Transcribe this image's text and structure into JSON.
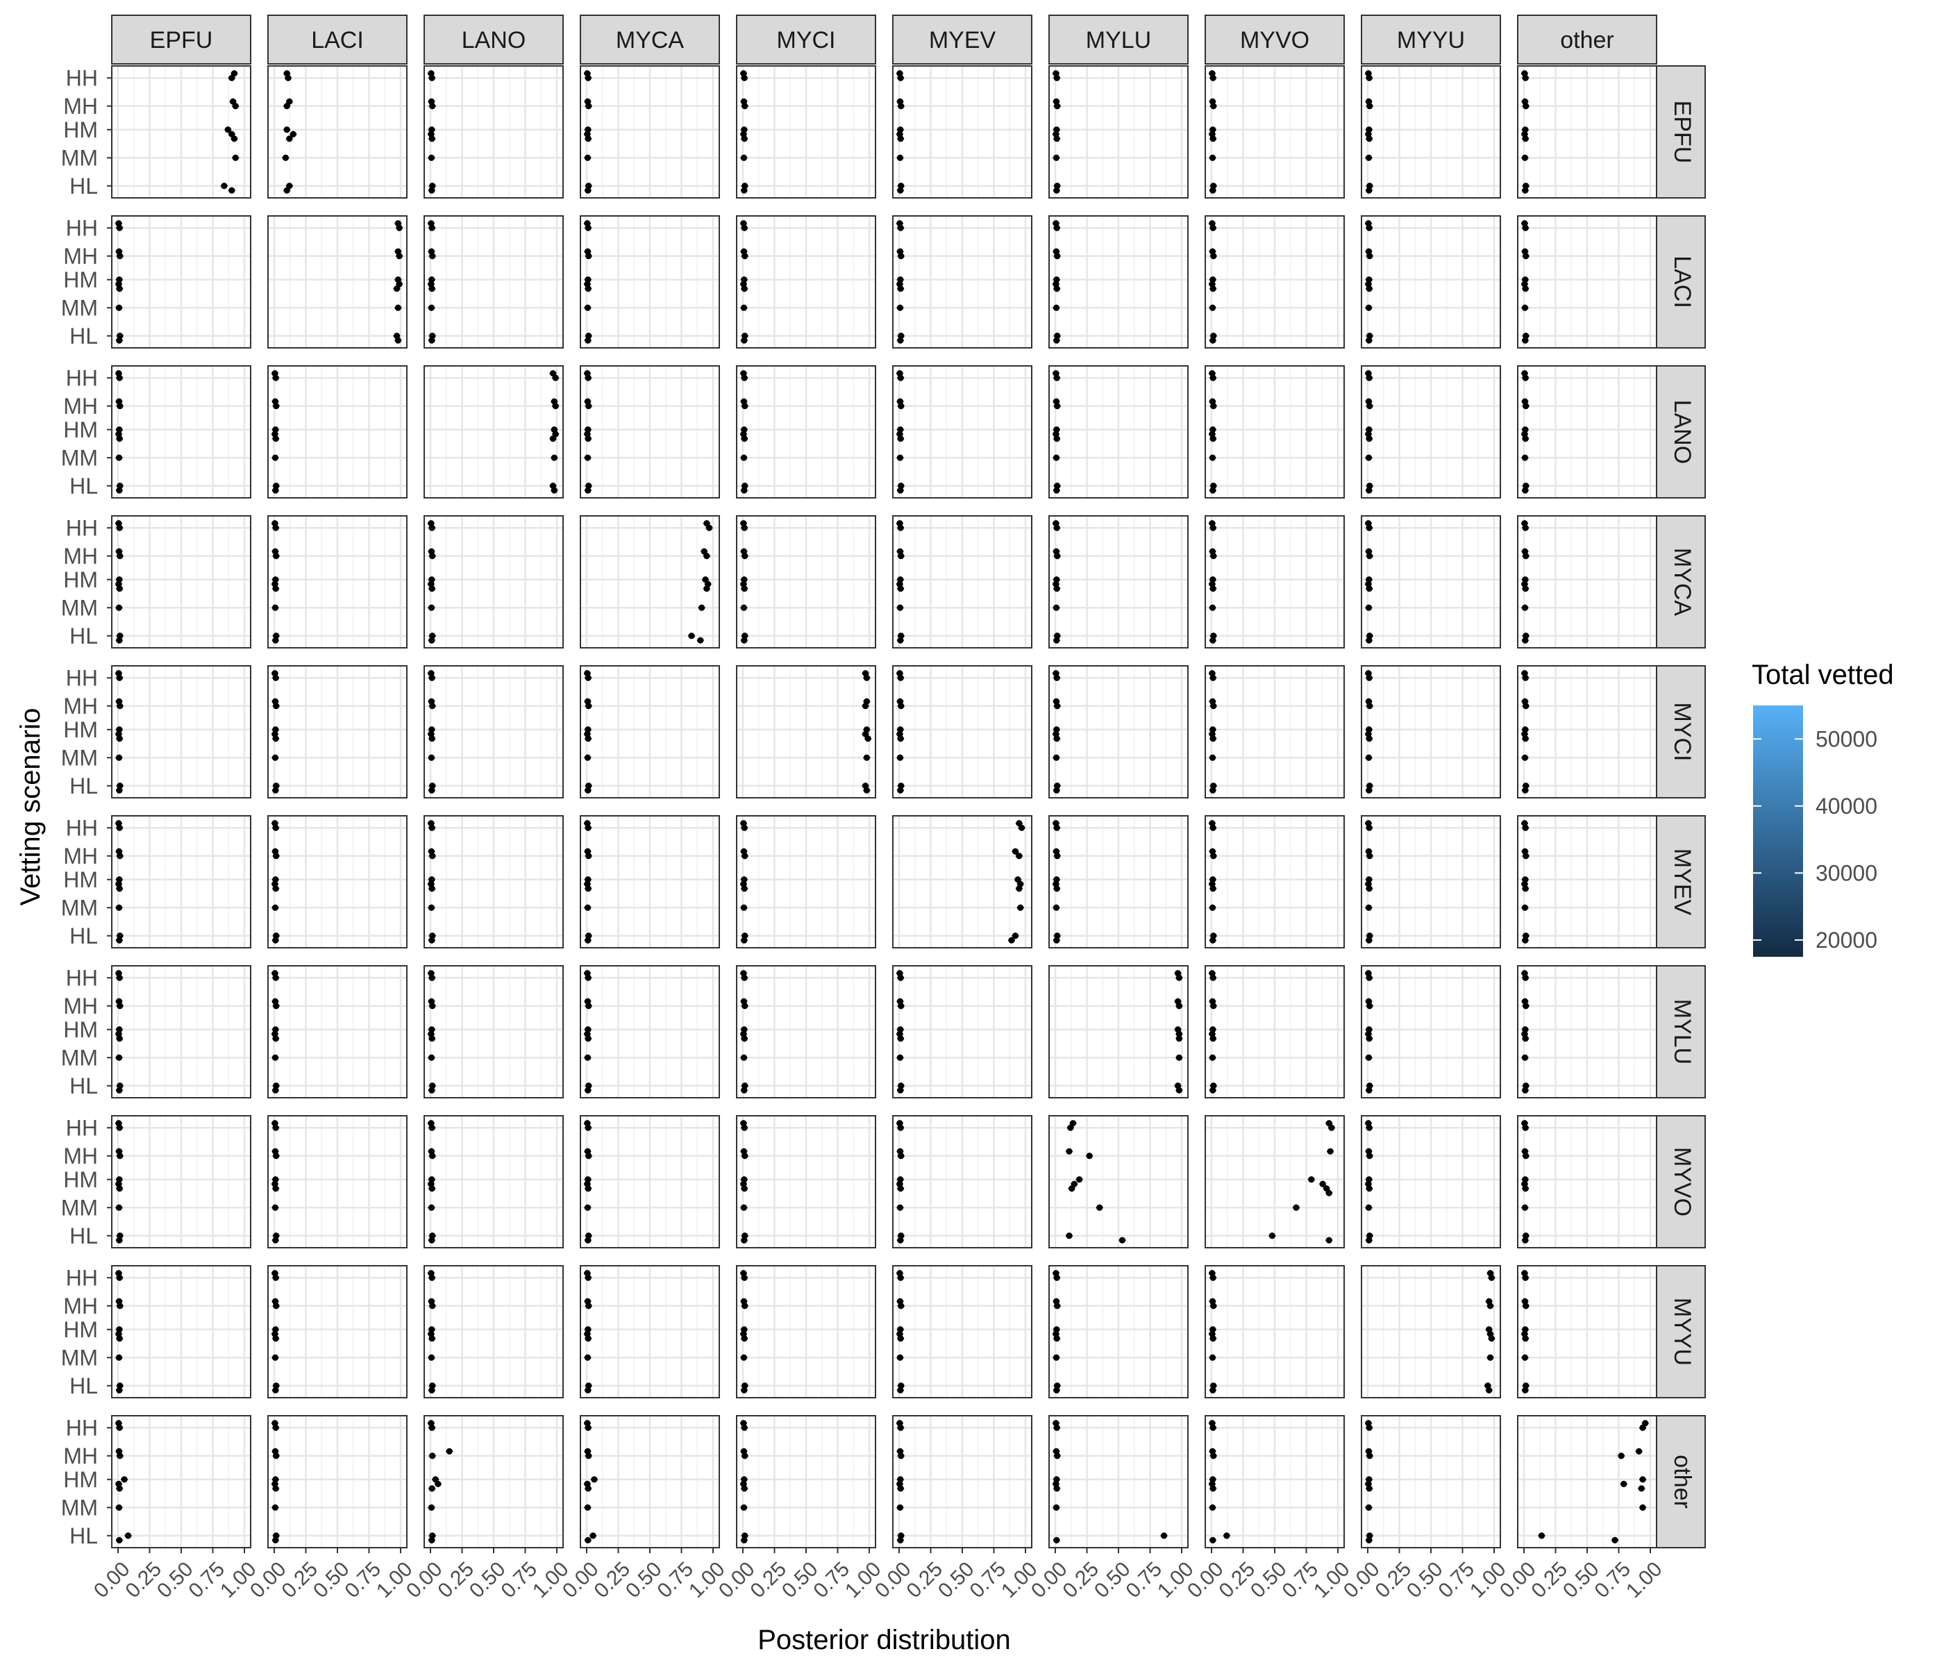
{
  "chart_data": {
    "type": "scatter",
    "xlabel": "Posterior distribution",
    "ylabel": "Vetting scenario",
    "col_facets": [
      "EPFU",
      "LACI",
      "LANO",
      "MYCA",
      "MYCI",
      "MYEV",
      "MYLU",
      "MYVO",
      "MYYU",
      "other"
    ],
    "row_facets": [
      "EPFU",
      "LACI",
      "LANO",
      "MYCA",
      "MYCI",
      "MYEV",
      "MYLU",
      "MYVO",
      "MYYU",
      "other"
    ],
    "y_categories": [
      "HH",
      "MH",
      "HM",
      "MM",
      "HL"
    ],
    "x_ticks": [
      "0.00",
      "0.25",
      "0.50",
      "0.75",
      "1.00"
    ],
    "xlim": [
      0,
      1
    ],
    "legend": {
      "title": "Total vetted",
      "position": "right",
      "labels": [
        "50000",
        "40000",
        "30000",
        "20000"
      ],
      "values": [
        50000,
        40000,
        30000,
        20000
      ],
      "range": [
        17500,
        55000
      ],
      "color_low": "#132B43",
      "color_high": "#56B1F7"
    },
    "diagonal_high_points": {
      "EPFU": [
        [
          0,
          0.92
        ],
        [
          0.1,
          0.9
        ],
        [
          1,
          0.91
        ],
        [
          1.1,
          0.93
        ],
        [
          2,
          0.87
        ],
        [
          2.1,
          0.9
        ],
        [
          2.2,
          0.92
        ],
        [
          3,
          0.93
        ],
        [
          4,
          0.84
        ],
        [
          4.1,
          0.9
        ]
      ],
      "LACI": [
        [
          0,
          0.98
        ],
        [
          0.1,
          0.99
        ],
        [
          1,
          0.98
        ],
        [
          1.1,
          0.99
        ],
        [
          2,
          0.98
        ],
        [
          2.1,
          0.99
        ],
        [
          2.2,
          0.97
        ],
        [
          3,
          0.98
        ],
        [
          4,
          0.97
        ],
        [
          4.1,
          0.98
        ]
      ],
      "LANO": [
        [
          0,
          0.97
        ],
        [
          0.1,
          0.99
        ],
        [
          1,
          0.98
        ],
        [
          1.1,
          0.99
        ],
        [
          2,
          0.98
        ],
        [
          2.1,
          0.99
        ],
        [
          2.2,
          0.97
        ],
        [
          3,
          0.98
        ],
        [
          4,
          0.97
        ],
        [
          4.1,
          0.98
        ]
      ],
      "MYCA": [
        [
          0,
          0.95
        ],
        [
          0.1,
          0.97
        ],
        [
          1,
          0.93
        ],
        [
          1.1,
          0.95
        ],
        [
          2,
          0.94
        ],
        [
          2.1,
          0.96
        ],
        [
          2.2,
          0.95
        ],
        [
          3,
          0.91
        ],
        [
          4,
          0.83
        ],
        [
          4.1,
          0.9
        ]
      ],
      "MYCI": [
        [
          0,
          0.97
        ],
        [
          0.1,
          0.98
        ],
        [
          1,
          0.98
        ],
        [
          1.1,
          0.97
        ],
        [
          2,
          0.98
        ],
        [
          2.1,
          0.97
        ],
        [
          2.2,
          0.99
        ],
        [
          3,
          0.98
        ],
        [
          4,
          0.97
        ],
        [
          4.1,
          0.98
        ]
      ],
      "MYEV": [
        [
          0,
          0.95
        ],
        [
          0.1,
          0.97
        ],
        [
          1,
          0.92
        ],
        [
          1.1,
          0.95
        ],
        [
          2,
          0.94
        ],
        [
          2.1,
          0.96
        ],
        [
          2.2,
          0.95
        ],
        [
          3,
          0.96
        ],
        [
          4,
          0.92
        ],
        [
          4.1,
          0.89
        ]
      ],
      "MYLU": [
        [
          0,
          0.97
        ],
        [
          0.1,
          0.98
        ],
        [
          1,
          0.97
        ],
        [
          1.1,
          0.98
        ],
        [
          2,
          0.97
        ],
        [
          2.1,
          0.98
        ],
        [
          2.2,
          0.98
        ],
        [
          3,
          0.98
        ],
        [
          4,
          0.97
        ],
        [
          4.1,
          0.98
        ]
      ],
      "MYVO": [
        [
          0,
          0.93
        ],
        [
          0.1,
          0.95
        ],
        [
          1,
          0.94
        ],
        [
          2,
          0.79
        ],
        [
          2.1,
          0.88
        ],
        [
          2.2,
          0.91
        ],
        [
          2.3,
          0.93
        ],
        [
          3,
          0.67
        ],
        [
          4,
          0.48
        ],
        [
          4.1,
          0.93
        ]
      ],
      "MYYU": [
        [
          0,
          0.97
        ],
        [
          0.1,
          0.98
        ],
        [
          1,
          0.96
        ],
        [
          1.1,
          0.97
        ],
        [
          2,
          0.96
        ],
        [
          2.1,
          0.97
        ],
        [
          2.2,
          0.98
        ],
        [
          3,
          0.97
        ],
        [
          4,
          0.95
        ],
        [
          4.1,
          0.96
        ]
      ],
      "other": [
        [
          0,
          0.96
        ],
        [
          0.1,
          0.94
        ],
        [
          1,
          0.91
        ],
        [
          1.1,
          0.77
        ],
        [
          2,
          0.94
        ],
        [
          2.1,
          0.79
        ],
        [
          2.2,
          0.93
        ],
        [
          3,
          0.94
        ],
        [
          4,
          0.14
        ],
        [
          4.1,
          0.72
        ]
      ]
    },
    "offdiag_special_points": {
      "EPFU|LACI": [
        [
          0,
          0.1
        ],
        [
          0.1,
          0.11
        ],
        [
          1,
          0.12
        ],
        [
          1.1,
          0.1
        ],
        [
          2,
          0.1
        ],
        [
          2.1,
          0.15
        ],
        [
          2.2,
          0.12
        ],
        [
          3,
          0.09
        ],
        [
          4,
          0.12
        ],
        [
          4.1,
          0.1
        ]
      ],
      "MYVO|MYLU": [
        [
          0,
          0.14
        ],
        [
          0.1,
          0.12
        ],
        [
          1,
          0.11
        ],
        [
          1.1,
          0.27
        ],
        [
          2,
          0.19
        ],
        [
          2.1,
          0.15
        ],
        [
          2.2,
          0.13
        ],
        [
          3,
          0.35
        ],
        [
          4,
          0.11
        ],
        [
          4.1,
          0.53
        ]
      ],
      "other|LANO": [
        [
          1,
          0.15
        ],
        [
          2,
          0.04
        ],
        [
          2.1,
          0.06
        ]
      ],
      "other|MYLU": [
        [
          4,
          0.86
        ]
      ],
      "other|MYVO": [
        [
          4,
          0.12
        ]
      ],
      "other|EPFU": [
        [
          2,
          0.05
        ],
        [
          4,
          0.08
        ]
      ],
      "other|MYCA": [
        [
          2,
          0.06
        ],
        [
          4,
          0.05
        ]
      ]
    }
  }
}
